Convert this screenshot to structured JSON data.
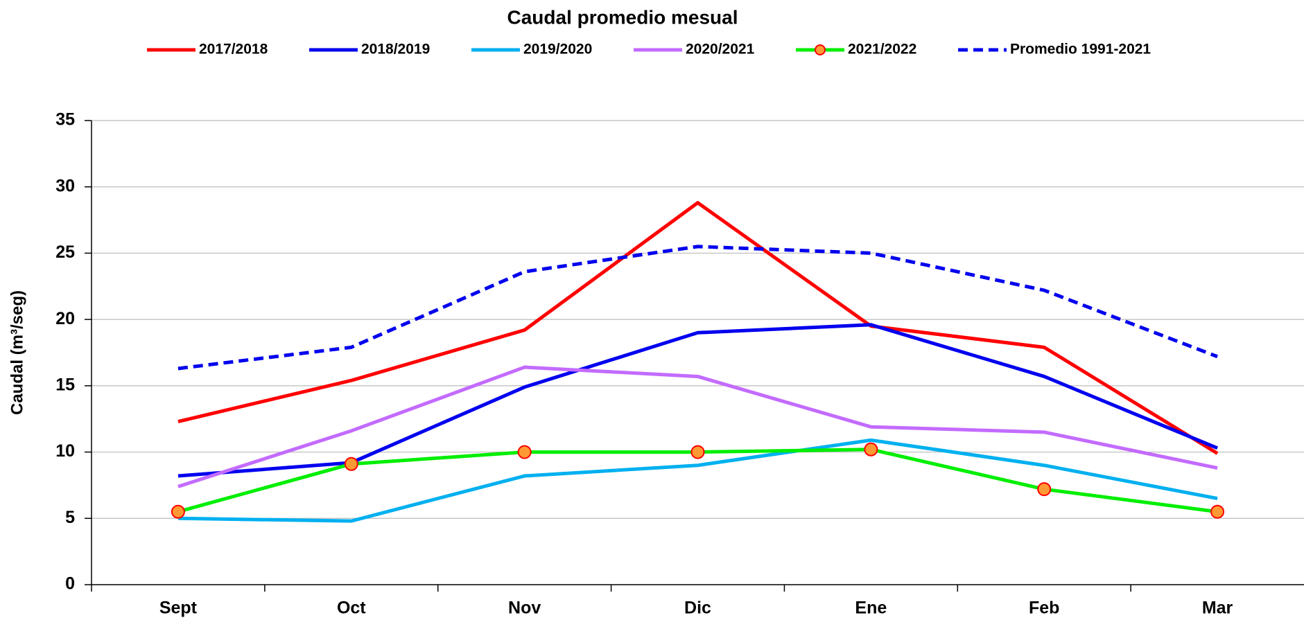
{
  "chart_data": {
    "type": "line",
    "title": "Caudal promedio mesual",
    "y_label": "Caudal (m³/seg)",
    "categories": [
      "Sept",
      "Oct",
      "Nov",
      "Dic",
      "Ene",
      "Feb",
      "Mar"
    ],
    "series": [
      {
        "name": "2017/2018",
        "color": "#ff0000",
        "values": [
          12.3,
          15.4,
          19.2,
          28.8,
          19.5,
          17.9,
          9.9
        ]
      },
      {
        "name": "2018/2019",
        "color": "#0000ee",
        "values": [
          8.2,
          9.2,
          14.9,
          19.0,
          19.6,
          15.7,
          10.3
        ]
      },
      {
        "name": "2019/2020",
        "color": "#00b0f0",
        "values": [
          5.0,
          4.8,
          8.2,
          9.0,
          10.9,
          9.0,
          6.5
        ]
      },
      {
        "name": "2020/2021",
        "color": "#c36bff",
        "values": [
          7.4,
          11.6,
          16.4,
          15.7,
          11.9,
          11.5,
          8.8
        ]
      },
      {
        "name": "2021/2022",
        "color": "#00ee00",
        "marker": true,
        "values": [
          5.5,
          9.1,
          10.0,
          10.0,
          10.2,
          7.2,
          5.5
        ]
      },
      {
        "name": "Promedio 1991-2021",
        "color": "#0000ee",
        "dashed": true,
        "values": [
          16.3,
          17.9,
          23.6,
          25.5,
          25.0,
          22.2,
          17.2
        ]
      }
    ],
    "ylim": [
      0,
      35
    ],
    "yticks": [
      0,
      5,
      10,
      15,
      20,
      25,
      30,
      35
    ],
    "grid": true
  }
}
